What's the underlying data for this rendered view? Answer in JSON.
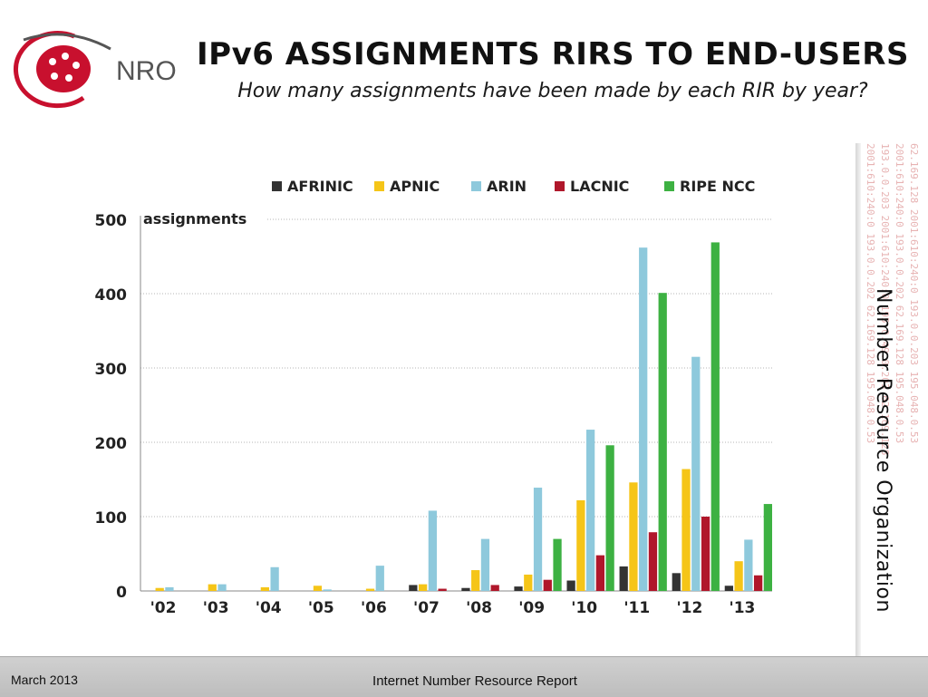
{
  "header": {
    "logo_text": "NRO",
    "title": "IPv6 ASSIGNMENTS RIRS TO END-USERS",
    "subtitle": "How many assignments have been made by each RIR by year?"
  },
  "side_band": {
    "vertical_text": "Number Resource Organization",
    "ip_strings": [
      "2001:610:240:0 193.0.0.202 62.169.128 195.048.0.53",
      "193.0.0.203 2001:610:240:0 195.0.49.0.203 62.169.128",
      "2001:610:240:0 193.0.0.202 62.169.128 195.048.0.53",
      "62.169.128 2001:610:240:0 193.0.0.203 195.048.0.53"
    ]
  },
  "footer": {
    "date": "March 2013",
    "report": "Internet Number Resource Report"
  },
  "colors": {
    "AFRINIC": "#333333",
    "APNIC": "#f5c518",
    "ARIN": "#8ec9dc",
    "LACNIC": "#b0172b",
    "RIPE NCC": "#3db142"
  },
  "chart_data": {
    "type": "bar",
    "title": "",
    "ylabel": "assignments",
    "xlabel": "",
    "ylim": [
      0,
      500
    ],
    "yticks": [
      0,
      100,
      200,
      300,
      400,
      500
    ],
    "grid": true,
    "legend_position": "top",
    "categories": [
      "'02",
      "'03",
      "'04",
      "'05",
      "'06",
      "'07",
      "'08",
      "'09",
      "'10",
      "'11",
      "'12",
      "'13"
    ],
    "series": [
      {
        "name": "AFRINIC",
        "values": [
          0,
          0,
          0,
          0,
          0,
          8,
          4,
          6,
          14,
          33,
          24,
          7
        ]
      },
      {
        "name": "APNIC",
        "values": [
          4,
          9,
          5,
          7,
          3,
          9,
          28,
          22,
          122,
          146,
          164,
          40
        ]
      },
      {
        "name": "ARIN",
        "values": [
          5,
          9,
          32,
          2,
          34,
          108,
          70,
          139,
          217,
          462,
          315,
          69
        ]
      },
      {
        "name": "LACNIC",
        "values": [
          0,
          0,
          0,
          0,
          0,
          3,
          8,
          15,
          48,
          79,
          100,
          21
        ]
      },
      {
        "name": "RIPE NCC",
        "values": [
          0,
          0,
          0,
          0,
          0,
          0,
          0,
          70,
          196,
          401,
          469,
          117
        ]
      }
    ]
  }
}
